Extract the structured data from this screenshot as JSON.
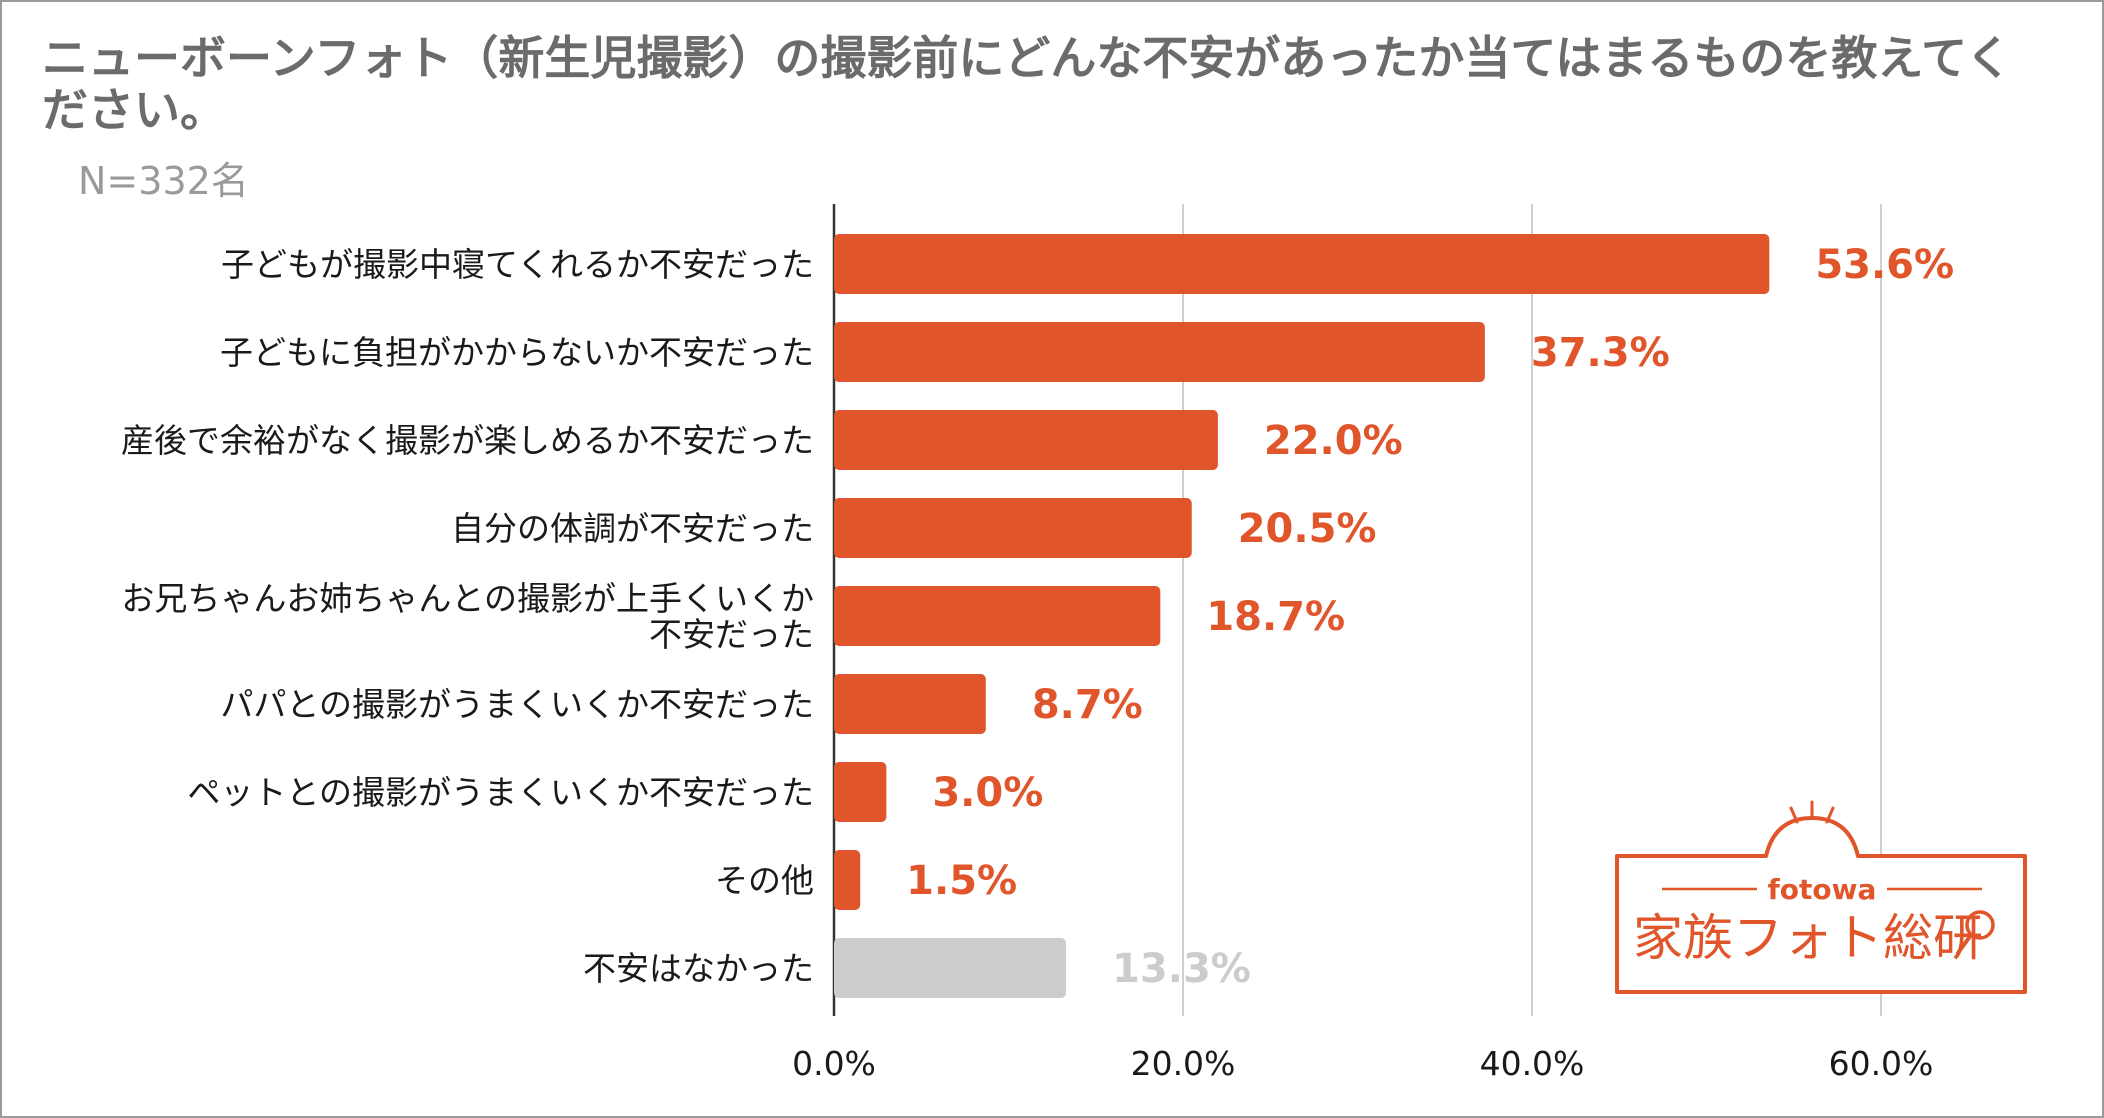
{
  "title": "ニューボーンフォト（新生児撮影）の撮影前にどんな不安があったか当てはまるものを教えてください。",
  "subtitle": "N=332名",
  "logo": {
    "brand": "fotowa",
    "name": "家族フォト総研",
    "icon": "magnifier-icon"
  },
  "colors": {
    "bar": "#e0552a",
    "bar_muted": "#cccccc",
    "value_text": "#e0552a",
    "value_text_muted": "#cccccc",
    "grid": "#cfcfcf",
    "axis": "#333333"
  },
  "chart_data": {
    "type": "bar",
    "orientation": "horizontal",
    "title": "ニューボーンフォト（新生児撮影）の撮影前にどんな不安があったか当てはまるものを教えてください。",
    "subtitle": "N=332名",
    "categories": [
      [
        "子どもが撮影中寝てくれるか不安だった"
      ],
      [
        "子どもに負担がかからないか不安だった"
      ],
      [
        "産後で余裕がなく撮影が楽しめるか不安だった"
      ],
      [
        "自分の体調が不安だった"
      ],
      [
        "お兄ちゃんお姉ちゃんとの撮影が上手くいくか",
        "不安だった"
      ],
      [
        "パパとの撮影がうまくいくか不安だった"
      ],
      [
        "ペットとの撮影がうまくいくか不安だった"
      ],
      [
        "その他"
      ],
      [
        "不安はなかった"
      ]
    ],
    "values": [
      53.6,
      37.3,
      22.0,
      20.5,
      18.7,
      8.7,
      3.0,
      1.5,
      13.3
    ],
    "value_labels": [
      "53.6%",
      "37.3%",
      "22.0%",
      "20.5%",
      "18.7%",
      "8.7%",
      "3.0%",
      "1.5%",
      "13.3%"
    ],
    "muted": [
      false,
      false,
      false,
      false,
      false,
      false,
      false,
      false,
      true
    ],
    "xticks": [
      0,
      20,
      40,
      60
    ],
    "xtick_labels": [
      "0.0%",
      "20.0%",
      "40.0%",
      "60.0%"
    ],
    "xlim": [
      0,
      69
    ],
    "grid": true,
    "legend": "none"
  }
}
